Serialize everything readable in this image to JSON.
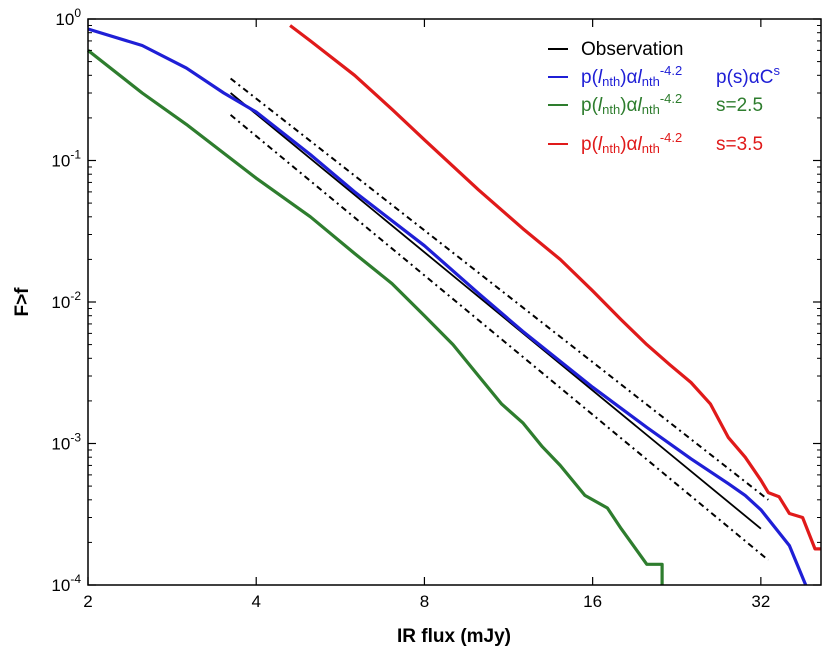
{
  "chart_data": {
    "type": "line",
    "title": "",
    "xlabel": "IR flux (mJy)",
    "ylabel": "F>f",
    "xscale": "log2",
    "yscale": "log10",
    "xlim": [
      2,
      41
    ],
    "ylim": [
      0.0001,
      1
    ],
    "xticks": [
      {
        "value": 2,
        "label": "2"
      },
      {
        "value": 4,
        "label": "4"
      },
      {
        "value": 8,
        "label": "8"
      },
      {
        "value": 16,
        "label": "16"
      },
      {
        "value": 32,
        "label": "32"
      }
    ],
    "yticks": [
      {
        "value": 1,
        "base": "10",
        "exp": "0"
      },
      {
        "value": 0.1,
        "base": "10",
        "exp": "-1"
      },
      {
        "value": 0.01,
        "base": "10",
        "exp": "-2"
      },
      {
        "value": 0.001,
        "base": "10",
        "exp": "-3"
      },
      {
        "value": 0.0001,
        "base": "10",
        "exp": "-4"
      }
    ],
    "legend_position": "top-right",
    "series": [
      {
        "name": "Observation",
        "color": "#000000",
        "style": "solid",
        "legend": {
          "text": "Observation"
        },
        "points": [
          [
            3.6,
            0.3
          ],
          [
            32,
            0.00025
          ]
        ]
      },
      {
        "name": "p(l_nth) α l_nth^-4.2, p(s) α C^s",
        "color": "#1f1fd6",
        "style": "solid",
        "legend": {
          "p": "p(",
          "l": "l",
          "nth": "nth",
          "alpha": ")α",
          "l2": "l",
          "nth2": "nth",
          "exp": "-4.2",
          "param": "p(s)αC",
          "param_sup": "s"
        },
        "points": [
          [
            2,
            0.85
          ],
          [
            2.5,
            0.65
          ],
          [
            3,
            0.45
          ],
          [
            3.5,
            0.3
          ],
          [
            4,
            0.22
          ],
          [
            5,
            0.11
          ],
          [
            6,
            0.06
          ],
          [
            8,
            0.025
          ],
          [
            10,
            0.0115
          ],
          [
            12,
            0.0062
          ],
          [
            16,
            0.0025
          ],
          [
            20,
            0.0013
          ],
          [
            24,
            0.00078
          ],
          [
            28,
            0.00052
          ],
          [
            30,
            0.00043
          ],
          [
            32,
            0.00034
          ],
          [
            36,
            0.00019
          ],
          [
            38.5,
            0.0001
          ]
        ]
      },
      {
        "name": "p(l_nth) α l_nth^-4.2, s=2.5",
        "color": "#2e7d2e",
        "style": "solid",
        "legend": {
          "p": "p(",
          "l": "l",
          "nth": "nth",
          "alpha": ")α",
          "l2": "l",
          "nth2": "nth",
          "exp": "-4.2",
          "param": "s=2.5"
        },
        "points": [
          [
            2,
            0.6
          ],
          [
            2.5,
            0.3
          ],
          [
            3,
            0.18
          ],
          [
            4,
            0.075
          ],
          [
            5,
            0.04
          ],
          [
            6,
            0.022
          ],
          [
            7,
            0.0135
          ],
          [
            8,
            0.008
          ],
          [
            9,
            0.005
          ],
          [
            10,
            0.003
          ],
          [
            11,
            0.0019
          ],
          [
            12,
            0.0014
          ],
          [
            13,
            0.00095
          ],
          [
            14,
            0.0007
          ],
          [
            15.5,
            0.00043
          ],
          [
            17,
            0.00035
          ],
          [
            18,
            0.00025
          ],
          [
            20,
            0.00014
          ],
          [
            21.3,
            0.00014
          ],
          [
            21.3,
            0.0001
          ]
        ]
      },
      {
        "name": "p(l_nth) α l_nth^-4.2, s=3.5",
        "color": "#e01a1a",
        "style": "solid",
        "legend": {
          "p": "p(",
          "l": "l",
          "nth": "nth",
          "alpha": ")α",
          "l2": "l",
          "nth2": "nth",
          "exp": "-4.2",
          "param": "s=3.5"
        },
        "points": [
          [
            4.6,
            0.9
          ],
          [
            5,
            0.7
          ],
          [
            6,
            0.4
          ],
          [
            7,
            0.23
          ],
          [
            8,
            0.14
          ],
          [
            10,
            0.062
          ],
          [
            12,
            0.033
          ],
          [
            14,
            0.02
          ],
          [
            16,
            0.012
          ],
          [
            18,
            0.0075
          ],
          [
            20,
            0.005
          ],
          [
            22,
            0.0036
          ],
          [
            24,
            0.0027
          ],
          [
            26,
            0.0019
          ],
          [
            28,
            0.0011
          ],
          [
            30,
            0.0008
          ],
          [
            32,
            0.00055
          ],
          [
            33,
            0.00045
          ],
          [
            34.5,
            0.00042
          ],
          [
            36,
            0.00032
          ],
          [
            38,
            0.0003
          ],
          [
            40,
            0.00018
          ],
          [
            41,
            0.00018
          ]
        ]
      },
      {
        "name": "Upper bound",
        "color": "#000000",
        "style": "dashdot",
        "legend": null,
        "points": [
          [
            3.6,
            0.38
          ],
          [
            33,
            0.0004
          ]
        ]
      },
      {
        "name": "Lower bound",
        "color": "#000000",
        "style": "dashdot",
        "legend": null,
        "points": [
          [
            3.6,
            0.21
          ],
          [
            33,
            0.00015
          ]
        ]
      }
    ]
  }
}
